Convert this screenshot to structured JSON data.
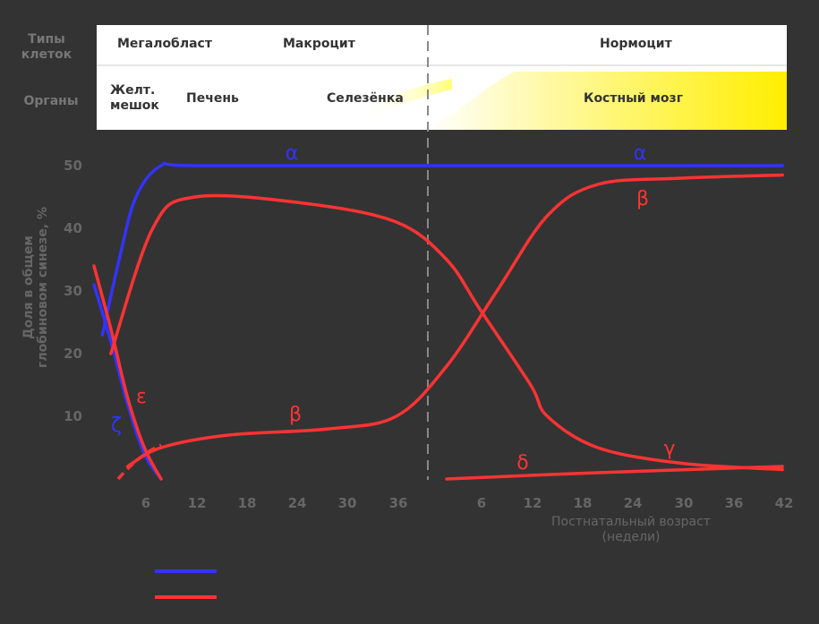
{
  "header": {
    "row1_label": "Типы клеток",
    "row2_label": "Органы",
    "cell_types": [
      "Мегалобласт",
      "Макроцит",
      "Нормоцит"
    ],
    "organs": [
      "Желт. мешок",
      "Печень",
      "Селезёнка",
      "Костный мозг"
    ]
  },
  "chart_data": {
    "type": "line",
    "ylabel": "Доля в общем глобиновом синезе, %",
    "xlabel": "Постнатальный возраст (недели)",
    "yticks": [
      10,
      20,
      30,
      40,
      50
    ],
    "xticks_prenatal": [
      "6",
      "12",
      "18",
      "24",
      "30",
      "36"
    ],
    "xticks_postnatal": [
      "6",
      "12",
      "18",
      "24",
      "30",
      "36",
      "42"
    ],
    "ylim": [
      0,
      50
    ],
    "series": [
      {
        "name": "α",
        "color": "#3333ff",
        "x": [
          1,
          3,
          5,
          8,
          12,
          40,
          82
        ],
        "y": [
          23,
          35,
          45,
          50,
          50,
          50,
          50
        ]
      },
      {
        "name": "ζ",
        "color": "#3333ff",
        "x": [
          0,
          2,
          4,
          6,
          8
        ],
        "y": [
          31,
          22,
          12,
          4,
          0
        ]
      },
      {
        "name": "ε",
        "color": "#ff3333",
        "x": [
          0,
          2,
          4,
          6,
          8
        ],
        "y": [
          34,
          24,
          13,
          5,
          0
        ]
      },
      {
        "name": "γ",
        "color": "#ff3333",
        "x": [
          2,
          7,
          12,
          25,
          36,
          42,
          46,
          52,
          54,
          60,
          70,
          82
        ],
        "y": [
          20,
          40,
          45,
          44,
          41,
          35,
          27,
          15,
          10,
          5,
          2.5,
          1.5
        ]
      },
      {
        "name": "β",
        "color": "#ff3333",
        "x": [
          4,
          8,
          16,
          28,
          36,
          42,
          48,
          54,
          60,
          70,
          82
        ],
        "y": [
          2,
          5,
          7,
          8,
          10,
          18,
          30,
          42,
          47,
          48,
          48.5
        ]
      },
      {
        "name": "δ",
        "color": "#ff3333",
        "x": [
          42,
          60,
          82
        ],
        "y": [
          0,
          1,
          2
        ]
      }
    ],
    "curve_labels": [
      {
        "text": "α",
        "color": "#3333ff"
      },
      {
        "text": "α",
        "color": "#3333ff"
      },
      {
        "text": "β",
        "color": "#ff3333"
      },
      {
        "text": "β",
        "color": "#ff3333"
      },
      {
        "text": "γ",
        "color": "#ff3333"
      },
      {
        "text": "δ",
        "color": "#ff3333"
      },
      {
        "text": "ε",
        "color": "#ff3333"
      },
      {
        "text": "ζ",
        "color": "#3333ff"
      }
    ],
    "legend": [
      {
        "color": "#3333ff"
      },
      {
        "color": "#ff3333"
      }
    ]
  }
}
